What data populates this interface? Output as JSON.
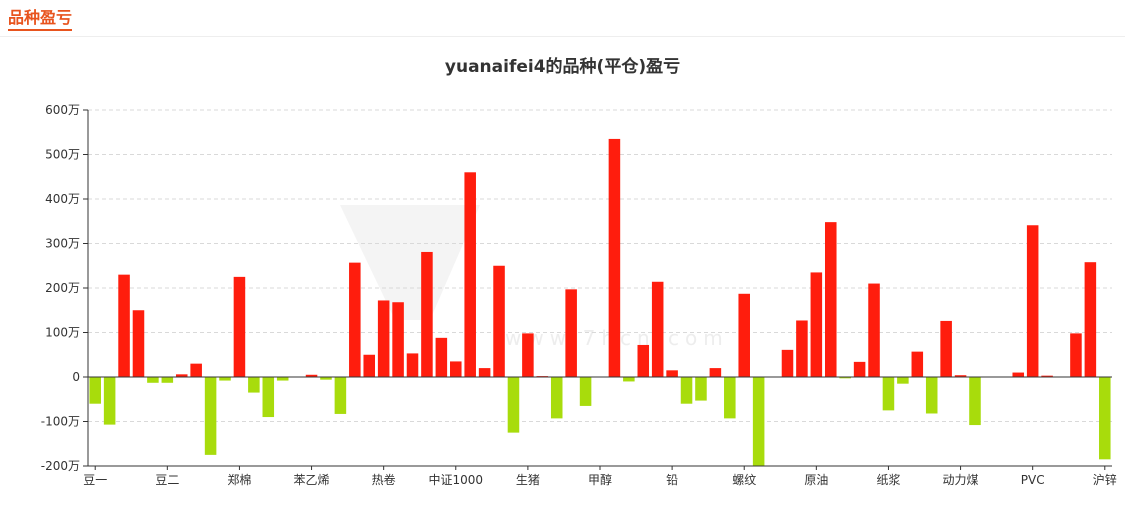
{
  "header": {
    "title": "品种盈亏"
  },
  "chart_data": {
    "type": "bar",
    "title": "yuanaifei4的品种(平仓)盈亏",
    "unit": "万",
    "ylim": [
      -200,
      600
    ],
    "yticks": [
      {
        "value": 600,
        "label": "600万"
      },
      {
        "value": 500,
        "label": "500万"
      },
      {
        "value": 400,
        "label": "400万"
      },
      {
        "value": 300,
        "label": "300万"
      },
      {
        "value": 200,
        "label": "200万"
      },
      {
        "value": 100,
        "label": "100万"
      },
      {
        "value": 0,
        "label": "0"
      },
      {
        "value": -100,
        "label": "-100万"
      },
      {
        "value": -200,
        "label": "-200万"
      }
    ],
    "grid": true,
    "legend": "none",
    "colors": {
      "positive": "#ff1d0d",
      "negative": "#a8dc0c",
      "grid": "#d9d9d9",
      "axis": "#333333"
    },
    "xtick_labels": [
      {
        "index": 0,
        "label": "豆一"
      },
      {
        "index": 5,
        "label": "豆二"
      },
      {
        "index": 10,
        "label": "郑棉"
      },
      {
        "index": 15,
        "label": "苯乙烯"
      },
      {
        "index": 20,
        "label": "热卷"
      },
      {
        "index": 25,
        "label": "中证1000"
      },
      {
        "index": 30,
        "label": "生猪"
      },
      {
        "index": 35,
        "label": "甲醇"
      },
      {
        "index": 40,
        "label": "铅"
      },
      {
        "index": 45,
        "label": "螺纹"
      },
      {
        "index": 50,
        "label": "原油"
      },
      {
        "index": 55,
        "label": "纸浆"
      },
      {
        "index": 60,
        "label": "动力煤"
      },
      {
        "index": 65,
        "label": "PVC"
      },
      {
        "index": 70,
        "label": "沪锌"
      }
    ],
    "values": [
      -60,
      -107,
      230,
      150,
      -13,
      -13,
      6,
      30,
      -175,
      -8,
      225,
      -35,
      -90,
      -8,
      0,
      5,
      -6,
      -83,
      257,
      50,
      172,
      168,
      53,
      281,
      88,
      35,
      460,
      20,
      250,
      -125,
      98,
      2,
      -93,
      197,
      -65,
      0,
      535,
      -10,
      72,
      214,
      15,
      -60,
      -53,
      20,
      -93,
      187,
      -200,
      0,
      61,
      127,
      235,
      348,
      -3,
      34,
      210,
      -75,
      -15,
      57,
      -82,
      126,
      4,
      -108,
      0,
      0,
      10,
      341,
      3,
      0,
      98,
      258,
      -185
    ]
  }
}
